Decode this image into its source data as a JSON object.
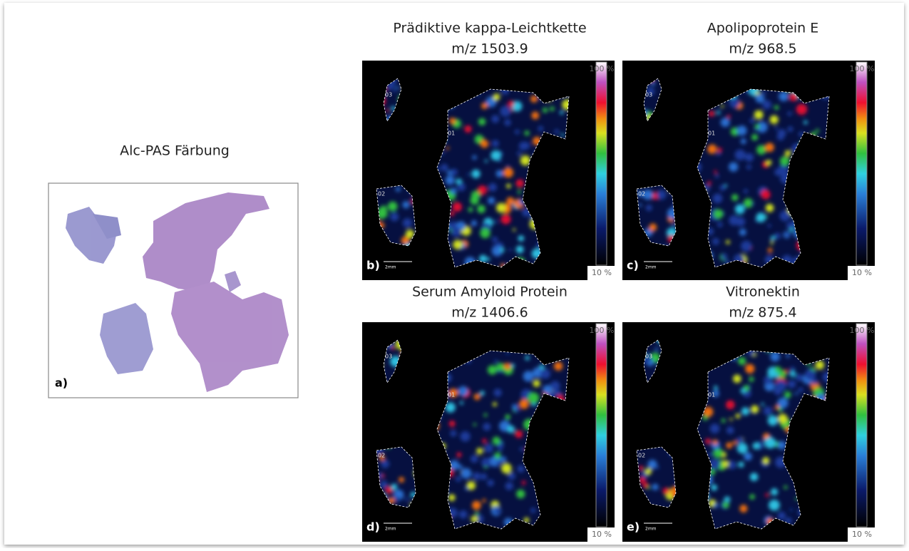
{
  "panels": [
    {
      "label": "a)",
      "title": "Alc-PAS Färbung"
    },
    {
      "label": "b)",
      "title": "Prädiktive kappa-Leichtkette",
      "subtitle": "m/z 1503.9"
    },
    {
      "label": "c)",
      "title": "Apolipoprotein E",
      "subtitle": "m/z 968.5"
    },
    {
      "label": "d)",
      "title": "Serum Amyloid Protein",
      "subtitle": "m/z 1406.6"
    },
    {
      "label": "e)",
      "title": "Vitronektin",
      "subtitle": "m/z 875.4"
    }
  ],
  "colorbar": {
    "max": "100 %",
    "min": "10 %"
  },
  "scale_bar": "2mm",
  "regions": [
    "01",
    "02",
    "03"
  ]
}
